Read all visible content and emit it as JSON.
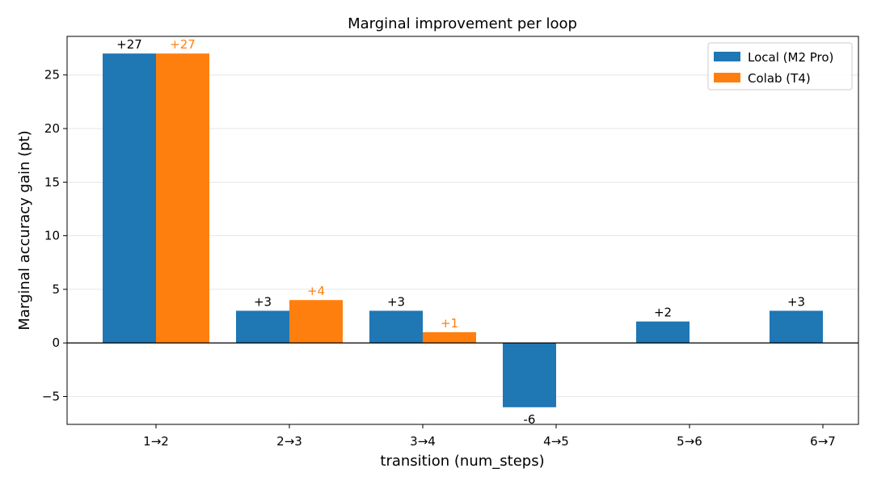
{
  "chart_data": {
    "type": "bar",
    "title": "Marginal improvement per loop",
    "xlabel": "transition (num_steps)",
    "ylabel": "Marginal accuracy gain (pt)",
    "categories": [
      "1→2",
      "2→3",
      "3→4",
      "4→5",
      "5→6",
      "6→7"
    ],
    "series": [
      {
        "name": "Local (M2 Pro)",
        "color": "#1f77b4",
        "values": [
          27,
          3,
          3,
          -6,
          2,
          3
        ],
        "labels": [
          "+27",
          "+3",
          "+3",
          "-6",
          "+2",
          "+3"
        ]
      },
      {
        "name": "Colab (T4)",
        "color": "#ff7f0e",
        "values": [
          27,
          4,
          1,
          null,
          null,
          null
        ],
        "labels": [
          "+27",
          "+4",
          "+1",
          null,
          null,
          null
        ]
      }
    ],
    "ylim": [
      -7.6,
      28.6
    ],
    "yticks": [
      -5,
      0,
      5,
      10,
      15,
      20,
      25
    ],
    "ytick_labels": [
      "−5",
      "0",
      "5",
      "10",
      "15",
      "20",
      "25"
    ],
    "grid": "horizontal",
    "zero_line": true,
    "legend_position": "top-right"
  }
}
